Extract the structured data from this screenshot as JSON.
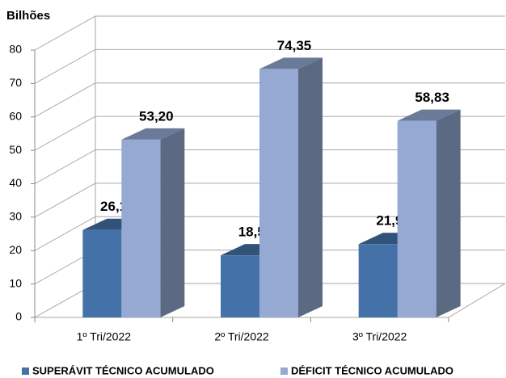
{
  "chart_data": {
    "type": "bar3d",
    "y_label": "Bilhões",
    "categories": [
      "1º Tri/2022",
      "2º Tri/2022",
      "3º Tri/2022"
    ],
    "series": [
      {
        "name": "SUPERÁVIT TÉCNICO ACUMULADO",
        "color": "#4472a8",
        "values": [
          26.16,
          18.57,
          21.93
        ],
        "value_labels": [
          "26,16",
          "18,57",
          "21,93"
        ]
      },
      {
        "name": "DÉFICIT TÉCNICO ACUMULADO",
        "color": "#95a9d3",
        "values": [
          53.2,
          74.35,
          58.83
        ],
        "value_labels": [
          "53,20",
          "74,35",
          "58,83"
        ]
      }
    ],
    "ylim": [
      0,
      80
    ],
    "yticks": [
      0,
      10,
      20,
      30,
      40,
      50,
      60,
      70,
      80
    ],
    "grid": true
  }
}
